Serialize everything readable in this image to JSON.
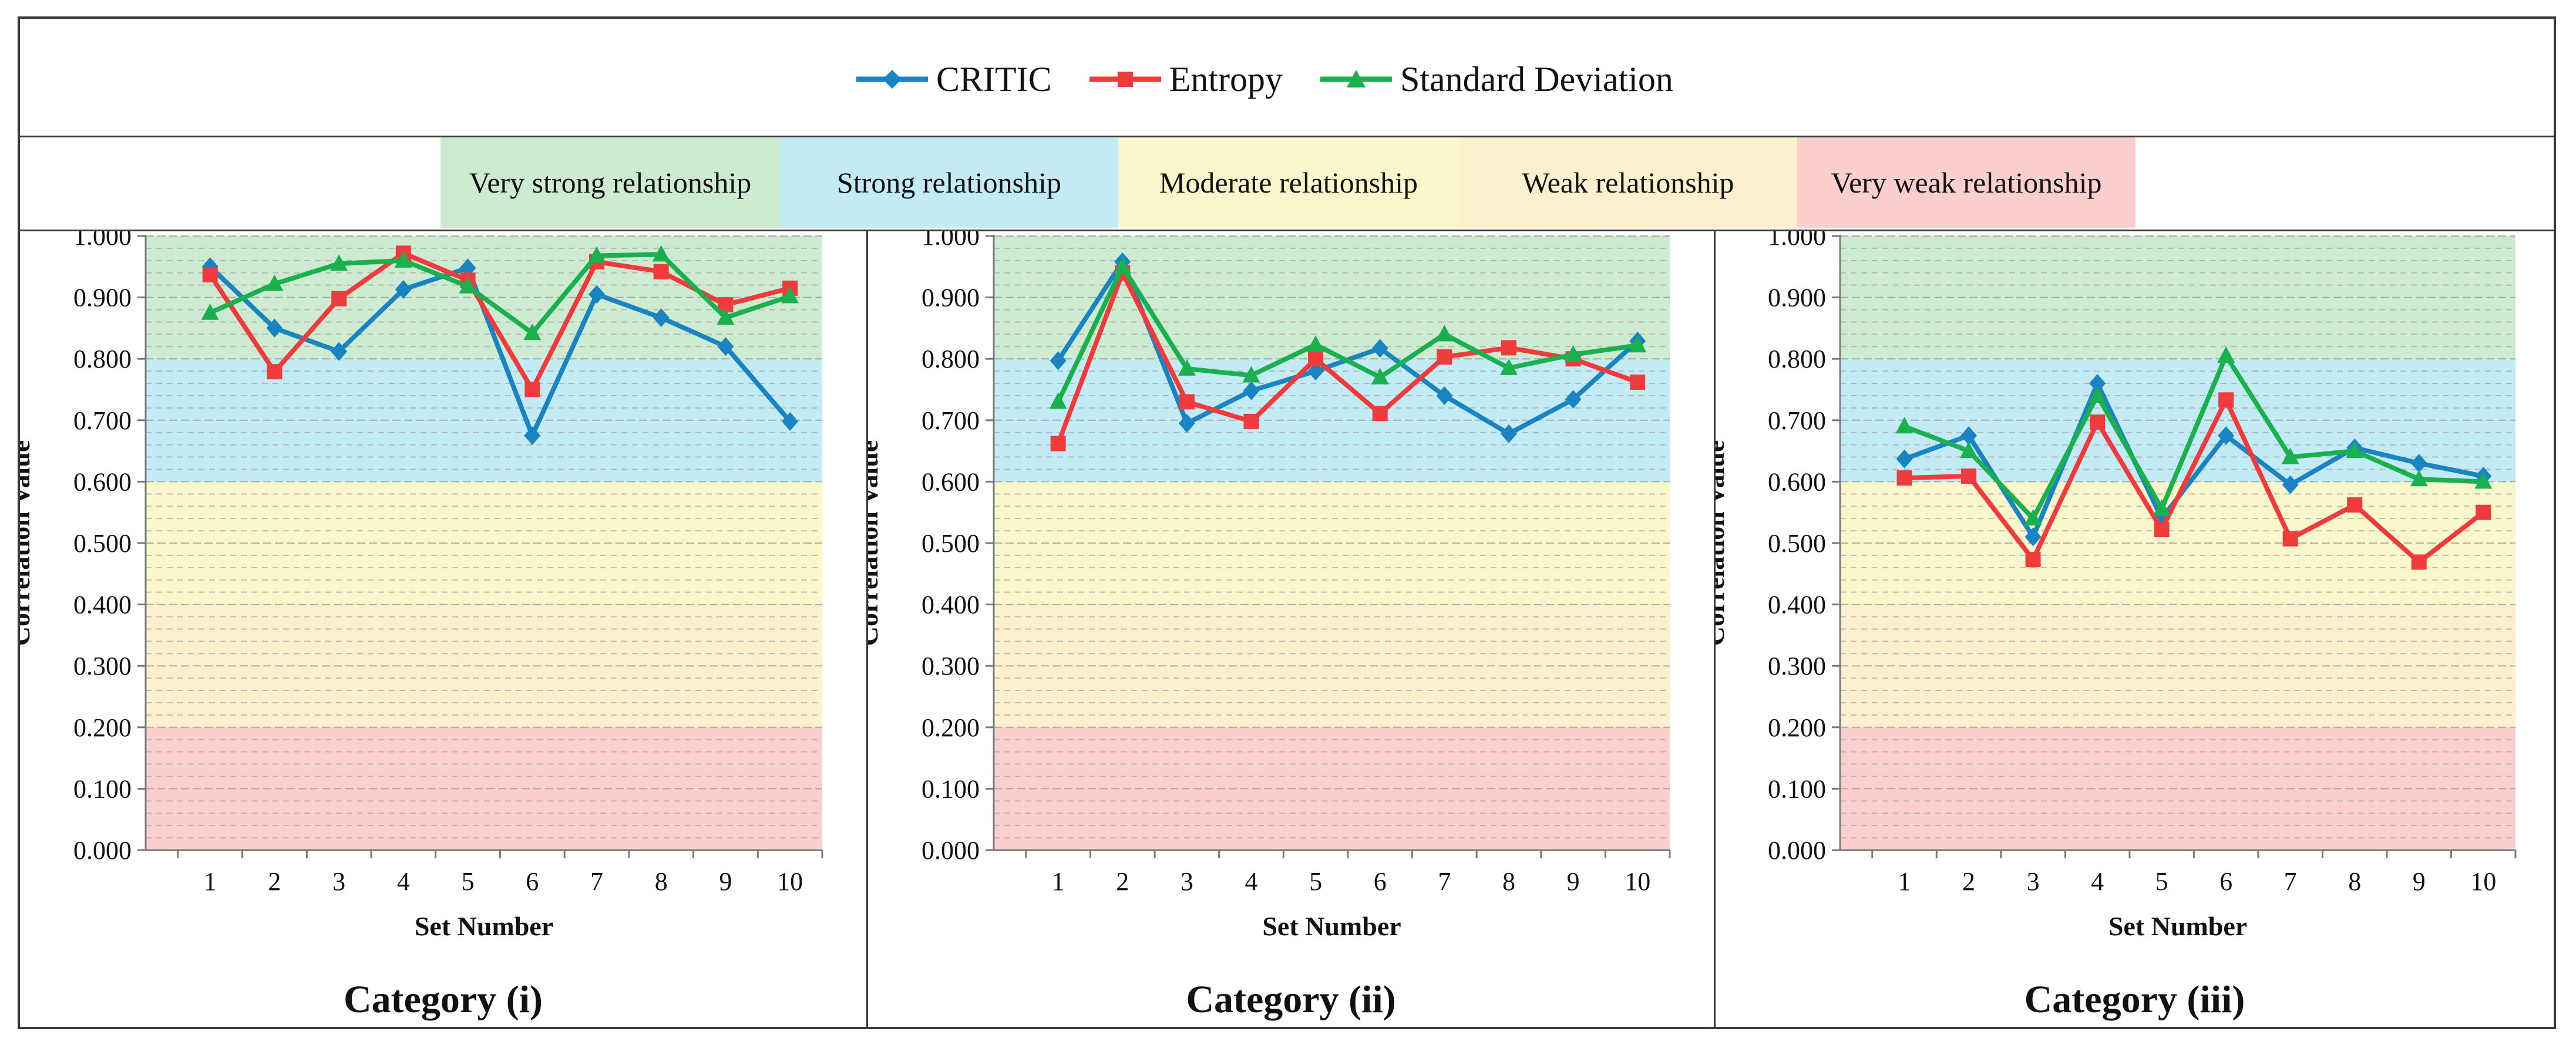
{
  "legend": {
    "series": [
      {
        "name": "CRITIC",
        "color": "#1a84c2",
        "marker": "diamond"
      },
      {
        "name": "Entropy",
        "color": "#ef3b3b",
        "marker": "square"
      },
      {
        "name": "Standard Deviation",
        "color": "#1ab04e",
        "marker": "triangle"
      }
    ]
  },
  "bands": [
    {
      "label": "Very strong relationship",
      "color": "#cdebd0",
      "range": [
        0.8,
        1.0
      ]
    },
    {
      "label": "Strong relationship",
      "color": "#c3ebf6",
      "range": [
        0.6,
        0.8
      ]
    },
    {
      "label": "Moderate relationship",
      "color": "#fbf7cc",
      "range": [
        0.4,
        0.6
      ]
    },
    {
      "label": "Weak relationship",
      "color": "#fcf0cf",
      "range": [
        0.2,
        0.4
      ]
    },
    {
      "label": "Very weak relationship",
      "color": "#fccfcf",
      "range": [
        0.0,
        0.2
      ]
    }
  ],
  "chart_data": [
    {
      "type": "line",
      "title": "Category (i)",
      "xlabel": "Set Number",
      "ylabel": "Correlation Value",
      "categories": [
        "1",
        "2",
        "3",
        "4",
        "5",
        "6",
        "7",
        "8",
        "9",
        "10"
      ],
      "ylim": [
        0,
        1
      ],
      "yticks": [
        "0.000",
        "0.100",
        "0.200",
        "0.300",
        "0.400",
        "0.500",
        "0.600",
        "0.700",
        "0.800",
        "0.900",
        "1.000"
      ],
      "series": [
        {
          "name": "CRITIC",
          "values": [
            0.95,
            0.85,
            0.812,
            0.913,
            0.948,
            0.675,
            0.905,
            0.867,
            0.82,
            0.698
          ]
        },
        {
          "name": "Entropy",
          "values": [
            0.937,
            0.779,
            0.898,
            0.972,
            0.928,
            0.75,
            0.958,
            0.942,
            0.888,
            0.915
          ]
        },
        {
          "name": "Standard Deviation",
          "values": [
            0.875,
            0.922,
            0.955,
            0.96,
            0.918,
            0.842,
            0.968,
            0.97,
            0.867,
            0.902
          ]
        }
      ]
    },
    {
      "type": "line",
      "title": "Category (ii)",
      "xlabel": "Set Number",
      "ylabel": "Correlation Value",
      "categories": [
        "1",
        "2",
        "3",
        "4",
        "5",
        "6",
        "7",
        "8",
        "9",
        "10"
      ],
      "ylim": [
        0,
        1
      ],
      "yticks": [
        "0.000",
        "0.100",
        "0.200",
        "0.300",
        "0.400",
        "0.500",
        "0.600",
        "0.700",
        "0.800",
        "0.900",
        "1.000"
      ],
      "series": [
        {
          "name": "CRITIC",
          "values": [
            0.797,
            0.958,
            0.695,
            0.748,
            0.78,
            0.817,
            0.74,
            0.678,
            0.734,
            0.829
          ]
        },
        {
          "name": "Entropy",
          "values": [
            0.662,
            0.94,
            0.73,
            0.698,
            0.8,
            0.711,
            0.803,
            0.818,
            0.8,
            0.762
          ]
        },
        {
          "name": "Standard Deviation",
          "values": [
            0.73,
            0.95,
            0.784,
            0.773,
            0.823,
            0.77,
            0.84,
            0.785,
            0.807,
            0.822
          ]
        }
      ]
    },
    {
      "type": "line",
      "title": "Category (iii)",
      "xlabel": "Set Number",
      "ylabel": "Correlation Value",
      "categories": [
        "1",
        "2",
        "3",
        "4",
        "5",
        "6",
        "7",
        "8",
        "9",
        "10"
      ],
      "ylim": [
        0,
        1
      ],
      "yticks": [
        "0.000",
        "0.100",
        "0.200",
        "0.300",
        "0.400",
        "0.500",
        "0.600",
        "0.700",
        "0.800",
        "0.900",
        "1.000"
      ],
      "series": [
        {
          "name": "CRITIC",
          "values": [
            0.637,
            0.675,
            0.51,
            0.76,
            0.54,
            0.675,
            0.595,
            0.655,
            0.63,
            0.609
          ]
        },
        {
          "name": "Entropy",
          "values": [
            0.606,
            0.609,
            0.473,
            0.697,
            0.522,
            0.733,
            0.507,
            0.562,
            0.469,
            0.55
          ]
        },
        {
          "name": "Standard Deviation",
          "values": [
            0.69,
            0.65,
            0.54,
            0.74,
            0.556,
            0.805,
            0.64,
            0.65,
            0.604,
            0.6
          ]
        }
      ]
    }
  ]
}
